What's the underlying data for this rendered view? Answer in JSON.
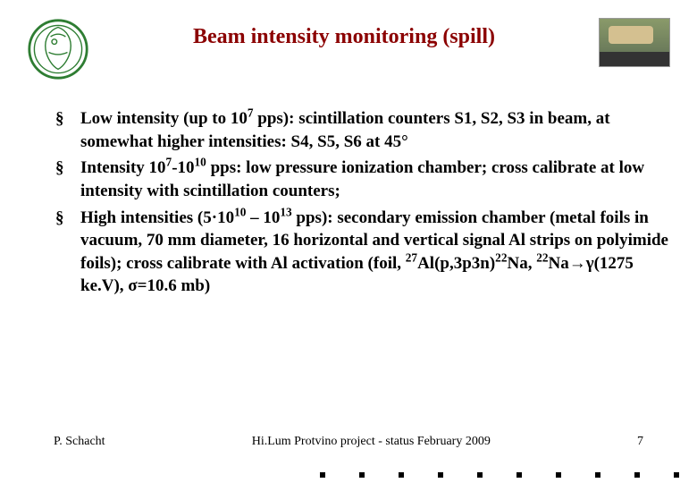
{
  "title": {
    "text": "Beam intensity monitoring (spill)",
    "color": "#8b0000",
    "fontsize": 24
  },
  "logo_left": {
    "stroke": "#2e7d32",
    "fill": "#ffffff"
  },
  "body_fontsize": 19,
  "body_color": "#000000",
  "bullets": [
    {
      "html": "Low intensity (up to 10<sup>7</sup> pps): scintillation counters S1, S2, S3 in beam, at somewhat higher intensities: S4, S5, S6 at 45°"
    },
    {
      "html": "Intensity 10<sup>7</sup>-10<sup>10</sup> pps: low pressure ionization chamber; cross calibrate at low intensity with scintillation counters;"
    },
    {
      "html": "High intensities (5·10<sup>10</sup> – 10<sup>13</sup> pps): secondary emission chamber (metal foils in vacuum, 70 mm diameter, 16 horizontal and vertical signal Al strips on polyimide foils); cross calibrate with Al activation (foil, <sup>27</sup>Al(p,3p3n)<sup>22</sup>Na, <sup>22</sup>Na→γ(1275 ke.V), σ=10.6 mb)"
    }
  ],
  "footer": {
    "author": "P. Schacht",
    "center": "Hi.Lum Protvino project - status February 2009",
    "page": "7",
    "fontsize": 14
  }
}
